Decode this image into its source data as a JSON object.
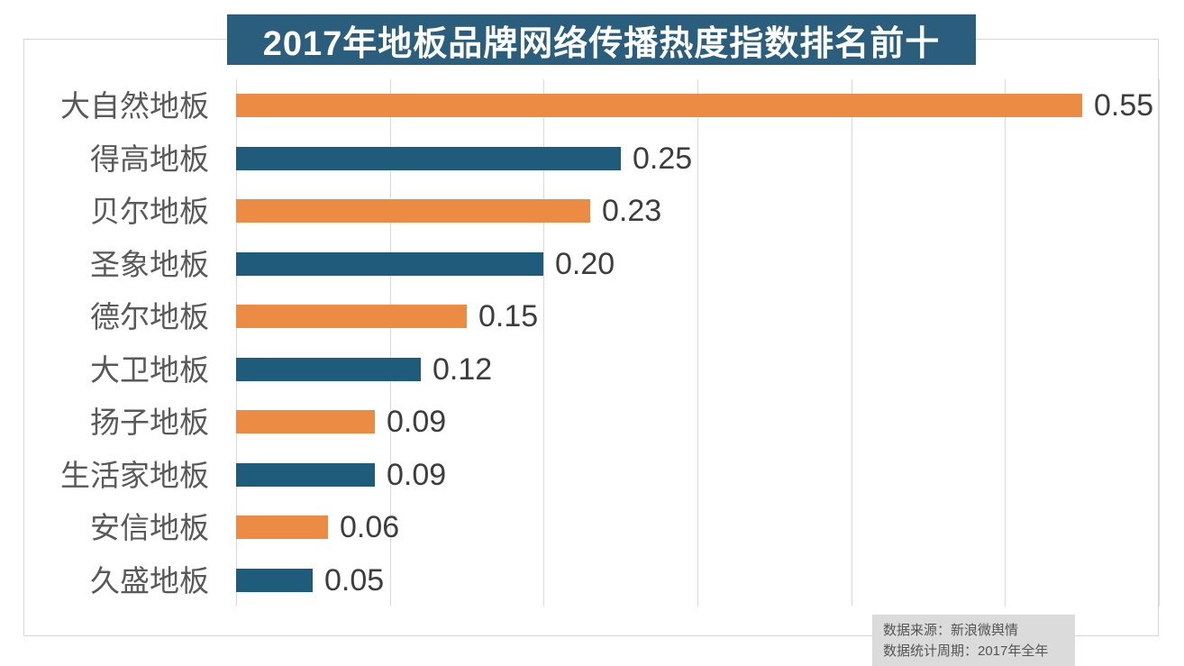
{
  "chart_title": "2017年地板品牌网络传播热度指数排名前十",
  "chart_data": {
    "type": "bar",
    "orientation": "horizontal",
    "title": "2017年地板品牌网络传播热度指数排名前十",
    "categories": [
      "大自然地板",
      "得高地板",
      "贝尔地板",
      "圣象地板",
      "德尔地板",
      "大卫地板",
      "扬子地板",
      "生活家地板",
      "安信地板",
      "久盛地板"
    ],
    "values": [
      0.55,
      0.25,
      0.23,
      0.2,
      0.15,
      0.12,
      0.09,
      0.09,
      0.06,
      0.05
    ],
    "value_labels": [
      "0.55",
      "0.25",
      "0.23",
      "0.20",
      "0.15",
      "0.12",
      "0.09",
      "0.09",
      "0.06",
      "0.05"
    ],
    "xlim": [
      0,
      0.6
    ],
    "gridline_step": 0.1,
    "grid": true,
    "legend": false,
    "bar_colors_alternating": [
      "#EC8B43",
      "#1F5C7B"
    ]
  },
  "source_note": {
    "line1": "数据来源：新浪微舆情",
    "line2": "数据统计周期：2017年全年"
  },
  "colors": {
    "title_bg": "#2A5E7C",
    "bar_orange": "#EC8B43",
    "bar_blue": "#1F5C7B",
    "gridline": "#DADADA",
    "chart_border": "#D6D6D6",
    "category_text": "#595959",
    "value_text": "#3D3D3D",
    "source_bg": "#DBDBDB",
    "source_text": "#555555"
  }
}
